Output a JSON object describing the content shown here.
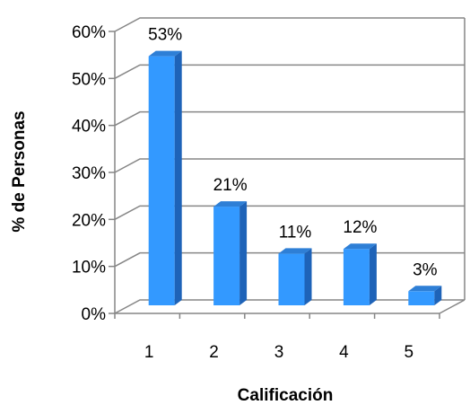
{
  "chart_data": {
    "type": "bar",
    "style": "3d-column",
    "categories": [
      "1",
      "2",
      "3",
      "4",
      "5"
    ],
    "values": [
      53,
      21,
      11,
      12,
      3
    ],
    "data_labels": [
      "53%",
      "21%",
      "11%",
      "12%",
      "3%"
    ],
    "y_ticks": [
      "0%",
      "10%",
      "20%",
      "30%",
      "40%",
      "50%",
      "60%"
    ],
    "xlabel": "Calificación",
    "ylabel": "% de Personas",
    "ylim": [
      0,
      60
    ],
    "grid": true,
    "legend": "none",
    "colors": {
      "bar_front": "#3399ff",
      "bar_side": "#1e63b8",
      "bar_top": "#2e7fd6",
      "grid": "#868686",
      "axis": "#868686",
      "wall": "#ffffff"
    }
  }
}
